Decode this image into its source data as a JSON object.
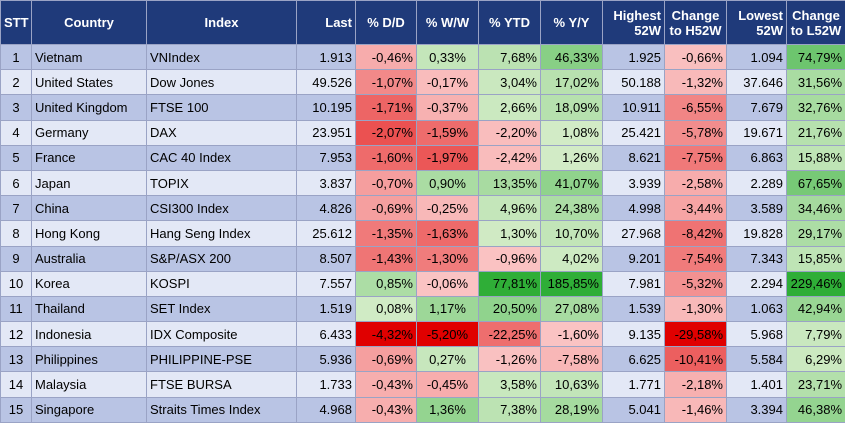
{
  "table": {
    "headers": [
      "STT",
      "Country",
      "Index",
      "Last",
      "% D/D",
      "% W/W",
      "% YTD",
      "% Y/Y",
      "Highest 52W",
      "Change to H52W",
      "Lowest 52W",
      "Change to L52W"
    ],
    "rows": [
      [
        "1",
        "Vietnam",
        "VNIndex",
        "1.913",
        "-0,46%",
        "0,33%",
        "7,68%",
        "46,33%",
        "1.925",
        "-0,66%",
        "1.094",
        "74,79%"
      ],
      [
        "2",
        "United States",
        "Dow Jones",
        "49.526",
        "-1,07%",
        "-0,17%",
        "3,04%",
        "17,02%",
        "50.188",
        "-1,32%",
        "37.646",
        "31,56%"
      ],
      [
        "3",
        "United Kingdom",
        "FTSE 100",
        "10.195",
        "-1,71%",
        "-0,37%",
        "2,66%",
        "18,09%",
        "10.911",
        "-6,55%",
        "7.679",
        "32,76%"
      ],
      [
        "4",
        "Germany",
        "DAX",
        "23.951",
        "-2,07%",
        "-1,59%",
        "-2,20%",
        "1,08%",
        "25.421",
        "-5,78%",
        "19.671",
        "21,76%"
      ],
      [
        "5",
        "France",
        "CAC 40 Index",
        "7.953",
        "-1,60%",
        "-1,97%",
        "-2,42%",
        "1,26%",
        "8.621",
        "-7,75%",
        "6.863",
        "15,88%"
      ],
      [
        "6",
        "Japan",
        "TOPIX",
        "3.837",
        "-0,70%",
        "0,90%",
        "13,35%",
        "41,07%",
        "3.939",
        "-2,58%",
        "2.289",
        "67,65%"
      ],
      [
        "7",
        "China",
        "CSI300 Index",
        "4.826",
        "-0,69%",
        "-0,25%",
        "4,96%",
        "24,38%",
        "4.998",
        "-3,44%",
        "3.589",
        "34,46%"
      ],
      [
        "8",
        "Hong Kong",
        "Hang Seng Index",
        "25.612",
        "-1,35%",
        "-1,63%",
        "1,30%",
        "10,70%",
        "27.968",
        "-8,42%",
        "19.828",
        "29,17%"
      ],
      [
        "9",
        "Australia",
        "S&P/ASX 200",
        "8.507",
        "-1,43%",
        "-1,30%",
        "-0,96%",
        "4,02%",
        "9.201",
        "-7,54%",
        "7.343",
        "15,85%"
      ],
      [
        "10",
        "Korea",
        "KOSPI",
        "7.557",
        "0,85%",
        "-0,06%",
        "77,81%",
        "185,85%",
        "7.981",
        "-5,32%",
        "2.294",
        "229,46%"
      ],
      [
        "11",
        "Thailand",
        "SET Index",
        "1.519",
        "0,08%",
        "1,17%",
        "20,50%",
        "27,08%",
        "1.539",
        "-1,30%",
        "1.063",
        "42,94%"
      ],
      [
        "12",
        "Indonesia",
        "IDX Composite",
        "6.433",
        "-4,32%",
        "-5,20%",
        "-22,25%",
        "-1,60%",
        "9.135",
        "-29,58%",
        "5.968",
        "7,79%"
      ],
      [
        "13",
        "Philippines",
        "PHILIPPINE-PSE",
        "5.936",
        "-0,69%",
        "0,27%",
        "-1,26%",
        "-7,58%",
        "6.625",
        "-10,41%",
        "5.584",
        "6,29%"
      ],
      [
        "14",
        "Malaysia",
        "FTSE BURSA",
        "1.733",
        "-0,43%",
        "-0,45%",
        "3,58%",
        "10,63%",
        "1.771",
        "-2,18%",
        "1.401",
        "23,71%"
      ],
      [
        "15",
        "Singapore",
        "Straits Times Index",
        "4.968",
        "-0,43%",
        "1,36%",
        "7,38%",
        "28,19%",
        "5.041",
        "-1,46%",
        "3.394",
        "46,38%"
      ]
    ]
  },
  "chart_data": {
    "type": "table",
    "columns": [
      "STT",
      "Country",
      "Index",
      "Last",
      "% D/D",
      "% W/W",
      "% YTD",
      "% Y/Y",
      "Highest 52W",
      "Change to H52W",
      "Lowest 52W",
      "Change to L52W"
    ],
    "heatmap_columns": [
      "% D/D",
      "% W/W",
      "% YTD",
      "% Y/Y",
      "Change to H52W",
      "Change to L52W"
    ],
    "heatmap_values": [
      [
        -0.46,
        0.33,
        7.68,
        46.33,
        -0.66,
        74.79
      ],
      [
        -1.07,
        -0.17,
        3.04,
        17.02,
        -1.32,
        31.56
      ],
      [
        -1.71,
        -0.37,
        2.66,
        18.09,
        -6.55,
        32.76
      ],
      [
        -2.07,
        -1.59,
        -2.2,
        1.08,
        -5.78,
        21.76
      ],
      [
        -1.6,
        -1.97,
        -2.42,
        1.26,
        -7.75,
        15.88
      ],
      [
        -0.7,
        0.9,
        13.35,
        41.07,
        -2.58,
        67.65
      ],
      [
        -0.69,
        -0.25,
        4.96,
        24.38,
        -3.44,
        34.46
      ],
      [
        -1.35,
        -1.63,
        1.3,
        10.7,
        -8.42,
        29.17
      ],
      [
        -1.43,
        -1.3,
        -0.96,
        4.02,
        -7.54,
        15.85
      ],
      [
        0.85,
        -0.06,
        77.81,
        185.85,
        -5.32,
        229.46
      ],
      [
        0.08,
        1.17,
        20.5,
        27.08,
        -1.3,
        42.94
      ],
      [
        -4.32,
        -5.2,
        -22.25,
        -1.6,
        -29.58,
        7.79
      ],
      [
        -0.69,
        0.27,
        -1.26,
        -7.58,
        -10.41,
        6.29
      ],
      [
        -0.43,
        -0.45,
        3.58,
        10.63,
        -2.18,
        23.71
      ],
      [
        -0.43,
        1.36,
        7.38,
        28.19,
        -1.46,
        46.38
      ]
    ],
    "colors": {
      "header_bg": "#1f3a7a",
      "header_text": "#ffffff",
      "row_odd": "#b9c4e4",
      "row_even": "#e3e8f6",
      "positive_strong": "#2fae37",
      "positive_light": "#d4ecc8",
      "negative_strong": "#e00000",
      "negative_light": "#fac6c6",
      "border": "#9aa3c5"
    }
  }
}
